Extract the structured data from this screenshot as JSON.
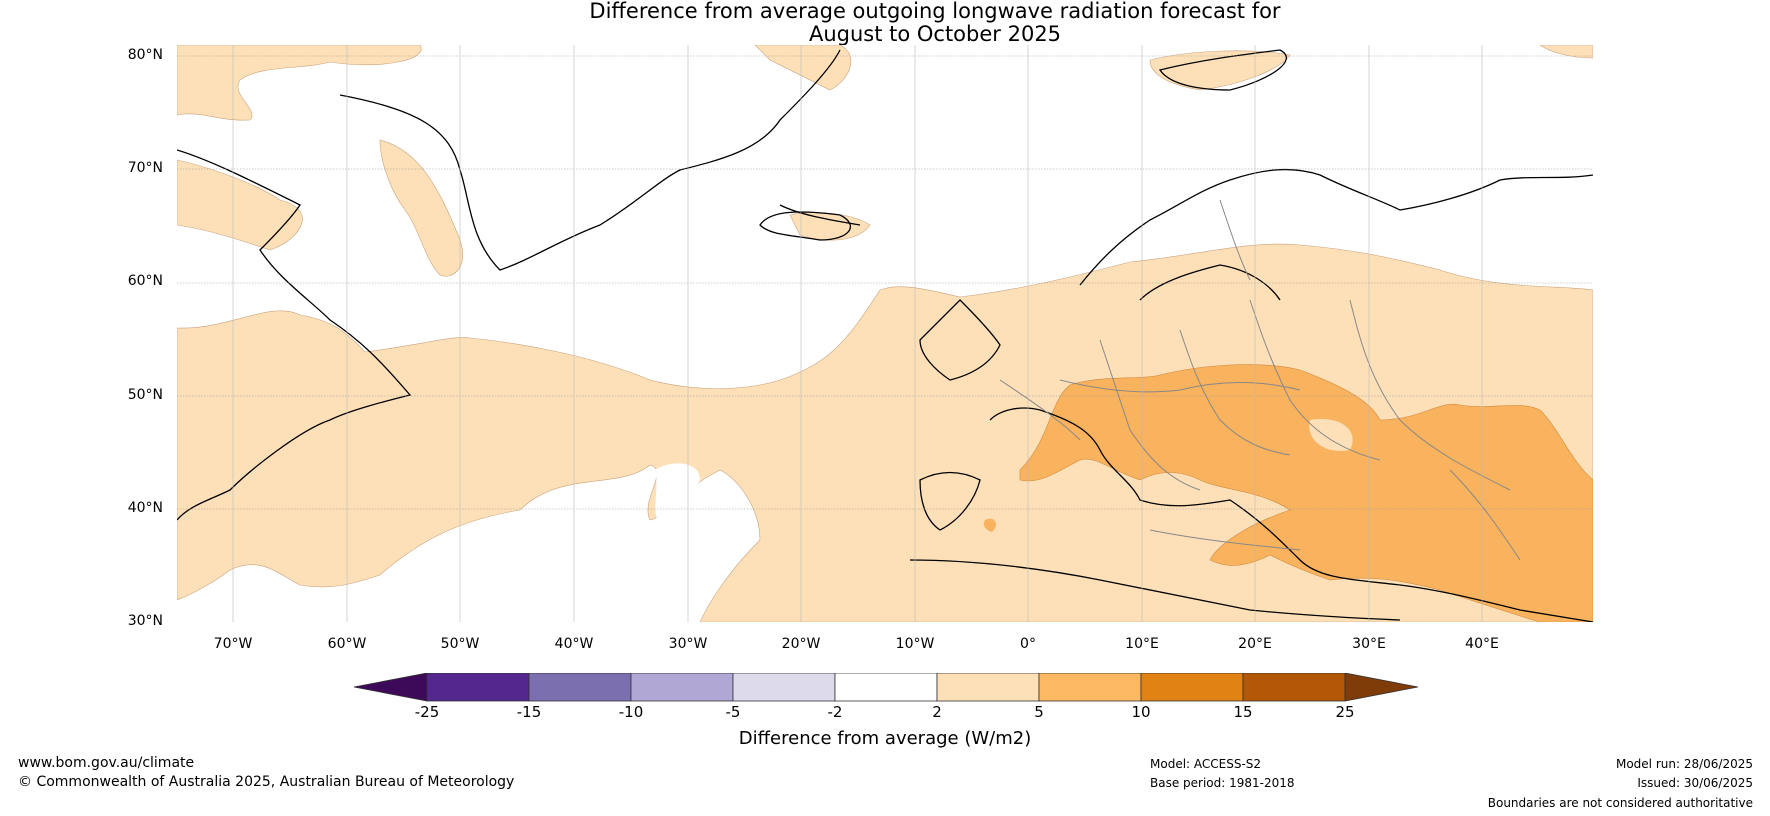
{
  "title": {
    "line1": "Difference from average outgoing longwave radiation forecast for",
    "line2": "August to October 2025"
  },
  "map": {
    "lat_labels": [
      "80°N",
      "70°N",
      "60°N",
      "50°N",
      "40°N",
      "30°N"
    ],
    "lon_labels": [
      "70°W",
      "60°W",
      "50°W",
      "40°W",
      "30°W",
      "20°W",
      "10°W",
      "0°",
      "10°E",
      "20°E",
      "30°E",
      "40°E"
    ],
    "colors": {
      "ocean_bg": "#ffffff",
      "light_orange": "#fde0b8",
      "mid_orange": "#f9b25e",
      "coast": "#000000",
      "border": "#808080"
    }
  },
  "colorbar": {
    "ticks": [
      "-25",
      "-15",
      "-10",
      "-5",
      "-2",
      "2",
      "5",
      "10",
      "15",
      "25"
    ],
    "bin_colors": [
      "#3d0a5a",
      "#54278f",
      "#7b6fb0",
      "#b1a7d4",
      "#dcdaeb",
      "#ffffff",
      "#fde0b8",
      "#fdb863",
      "#e08214",
      "#b35806",
      "#7f3b08"
    ],
    "label": "Difference from average (W/m2)"
  },
  "footer": {
    "url": "www.bom.gov.au/climate",
    "copyright": "© Commonwealth of Australia 2025, Australian Bureau of Meteorology",
    "model": "Model: ACCESS-S2",
    "base_period": "Base period: 1981-2018",
    "model_run": "Model run: 28/06/2025",
    "issued": "Issued: 30/06/2025",
    "boundaries": "Boundaries are not considered authoritative"
  }
}
